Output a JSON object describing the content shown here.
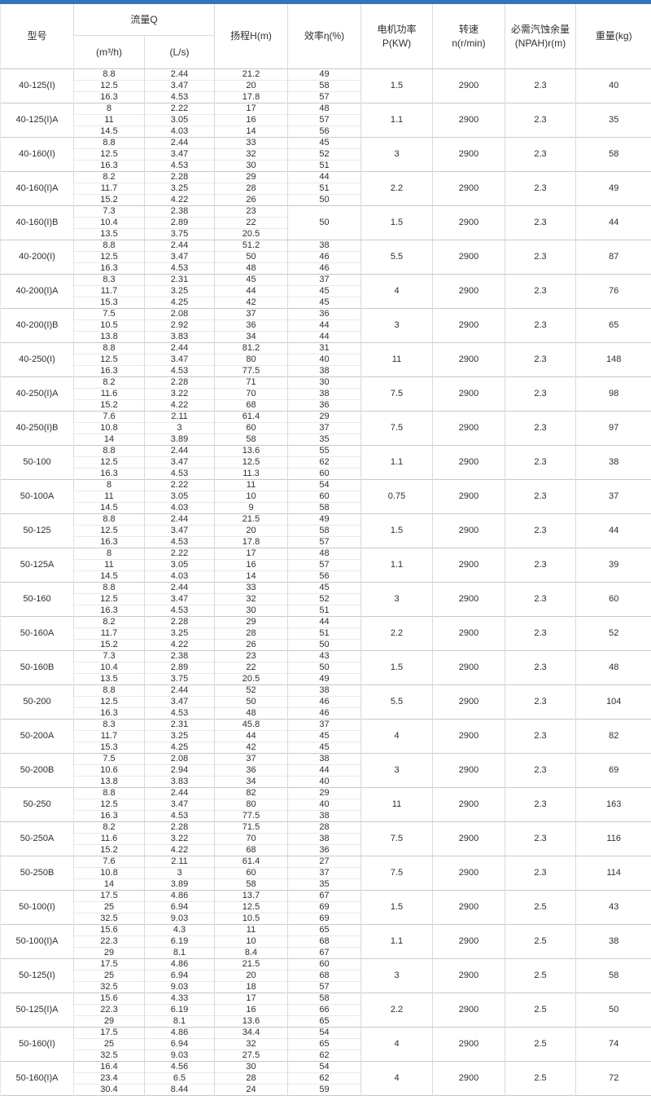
{
  "colors": {
    "accent_bar": "#3376b5"
  },
  "table": {
    "headers": {
      "model": "型号",
      "flow": "流量Q",
      "flow_m3h": "(m³/h)",
      "flow_ls": "(L/s)",
      "head": "扬程H(m)",
      "efficiency": "效率η(%)",
      "power_line1": "电机功率",
      "power_line2": "P(KW)",
      "speed_line1": "转速",
      "speed_line2": "n(r/min)",
      "npsh_line1": "必需汽蚀余量",
      "npsh_line2": "(NPAH)r(m)",
      "weight": "重量(kg)"
    },
    "rows": [
      {
        "model": "40-125(I)",
        "sub": [
          [
            "8.8",
            "2.44",
            "21.2",
            "49"
          ],
          [
            "12.5",
            "3.47",
            "20",
            "58"
          ],
          [
            "16.3",
            "4.53",
            "17.8",
            "57"
          ]
        ],
        "power": "1.5",
        "speed": "2900",
        "npsh": "2.3",
        "weight": "40"
      },
      {
        "model": "40-125(I)A",
        "sub": [
          [
            "8",
            "2.22",
            "17",
            "48"
          ],
          [
            "11",
            "3.05",
            "16",
            "57"
          ],
          [
            "14.5",
            "4.03",
            "14",
            "56"
          ]
        ],
        "power": "1.1",
        "speed": "2900",
        "npsh": "2.3",
        "weight": "35"
      },
      {
        "model": "40-160(I)",
        "sub": [
          [
            "8.8",
            "2.44",
            "33",
            "45"
          ],
          [
            "12.5",
            "3.47",
            "32",
            "52"
          ],
          [
            "16.3",
            "4.53",
            "30",
            "51"
          ]
        ],
        "power": "3",
        "speed": "2900",
        "npsh": "2.3",
        "weight": "58"
      },
      {
        "model": "40-160(I)A",
        "sub": [
          [
            "8.2",
            "2.28",
            "29",
            "44"
          ],
          [
            "11.7",
            "3.25",
            "28",
            "51"
          ],
          [
            "15.2",
            "4.22",
            "26",
            "50"
          ]
        ],
        "power": "2.2",
        "speed": "2900",
        "npsh": "2.3",
        "weight": "49"
      },
      {
        "model": "40-160(I)B",
        "sub": [
          [
            "7.3",
            "2.38",
            "23"
          ],
          [
            "10.4",
            "2.89",
            "22"
          ],
          [
            "13.5",
            "3.75",
            "20.5"
          ]
        ],
        "eff_merged": "50",
        "power": "1.5",
        "speed": "2900",
        "npsh": "2.3",
        "weight": "44"
      },
      {
        "model": "40-200(I)",
        "sub": [
          [
            "8.8",
            "2.44",
            "51.2",
            "38"
          ],
          [
            "12.5",
            "3.47",
            "50",
            "46"
          ],
          [
            "16.3",
            "4.53",
            "48",
            "46"
          ]
        ],
        "power": "5.5",
        "speed": "2900",
        "npsh": "2.3",
        "weight": "87"
      },
      {
        "model": "40-200(I)A",
        "sub": [
          [
            "8.3",
            "2.31",
            "45",
            "37"
          ],
          [
            "11.7",
            "3.25",
            "44",
            "45"
          ],
          [
            "15.3",
            "4.25",
            "42",
            "45"
          ]
        ],
        "power": "4",
        "speed": "2900",
        "npsh": "2.3",
        "weight": "76"
      },
      {
        "model": "40-200(I)B",
        "sub": [
          [
            "7.5",
            "2.08",
            "37",
            "36"
          ],
          [
            "10.5",
            "2.92",
            "36",
            "44"
          ],
          [
            "13.8",
            "3.83",
            "34",
            "44"
          ]
        ],
        "power": "3",
        "speed": "2900",
        "npsh": "2.3",
        "weight": "65"
      },
      {
        "model": "40-250(I)",
        "sub": [
          [
            "8.8",
            "2.44",
            "81.2",
            "31"
          ],
          [
            "12.5",
            "3.47",
            "80",
            "40"
          ],
          [
            "16.3",
            "4.53",
            "77.5",
            "38"
          ]
        ],
        "power": "11",
        "speed": "2900",
        "npsh": "2.3",
        "weight": "148"
      },
      {
        "model": "40-250(I)A",
        "sub": [
          [
            "8.2",
            "2.28",
            "71",
            "30"
          ],
          [
            "11.6",
            "3.22",
            "70",
            "38"
          ],
          [
            "15.2",
            "4.22",
            "68",
            "36"
          ]
        ],
        "power": "7.5",
        "speed": "2900",
        "npsh": "2.3",
        "weight": "98"
      },
      {
        "model": "40-250(I)B",
        "sub": [
          [
            "7.6",
            "2.11",
            "61.4",
            "29"
          ],
          [
            "10.8",
            "3",
            "60",
            "37"
          ],
          [
            "14",
            "3.89",
            "58",
            "35"
          ]
        ],
        "power": "7.5",
        "speed": "2900",
        "npsh": "2.3",
        "weight": "97"
      },
      {
        "model": "50-100",
        "sub": [
          [
            "8.8",
            "2.44",
            "13.6",
            "55"
          ],
          [
            "12.5",
            "3.47",
            "12.5",
            "62"
          ],
          [
            "16.3",
            "4.53",
            "11.3",
            "60"
          ]
        ],
        "power": "1.1",
        "speed": "2900",
        "npsh": "2.3",
        "weight": "38"
      },
      {
        "model": "50-100A",
        "sub": [
          [
            "8",
            "2.22",
            "11",
            "54"
          ],
          [
            "11",
            "3.05",
            "10",
            "60"
          ],
          [
            "14.5",
            "4.03",
            "9",
            "58"
          ]
        ],
        "power": "0.75",
        "speed": "2900",
        "npsh": "2.3",
        "weight": "37"
      },
      {
        "model": "50-125",
        "sub": [
          [
            "8.8",
            "2.44",
            "21.5",
            "49"
          ],
          [
            "12.5",
            "3.47",
            "20",
            "58"
          ],
          [
            "16.3",
            "4.53",
            "17.8",
            "57"
          ]
        ],
        "power": "1.5",
        "speed": "2900",
        "npsh": "2.3",
        "weight": "44"
      },
      {
        "model": "50-125A",
        "sub": [
          [
            "8",
            "2.22",
            "17",
            "48"
          ],
          [
            "11",
            "3.05",
            "16",
            "57"
          ],
          [
            "14.5",
            "4.03",
            "14",
            "56"
          ]
        ],
        "power": "1.1",
        "speed": "2900",
        "npsh": "2.3",
        "weight": "39"
      },
      {
        "model": "50-160",
        "sub": [
          [
            "8.8",
            "2.44",
            "33",
            "45"
          ],
          [
            "12.5",
            "3.47",
            "32",
            "52"
          ],
          [
            "16.3",
            "4.53",
            "30",
            "51"
          ]
        ],
        "power": "3",
        "speed": "2900",
        "npsh": "2.3",
        "weight": "60"
      },
      {
        "model": "50-160A",
        "sub": [
          [
            "8.2",
            "2.28",
            "29",
            "44"
          ],
          [
            "11.7",
            "3.25",
            "28",
            "51"
          ],
          [
            "15.2",
            "4.22",
            "26",
            "50"
          ]
        ],
        "power": "2.2",
        "speed": "2900",
        "npsh": "2.3",
        "weight": "52"
      },
      {
        "model": "50-160B",
        "sub": [
          [
            "7.3",
            "2.38",
            "23",
            "43"
          ],
          [
            "10.4",
            "2.89",
            "22",
            "50"
          ],
          [
            "13.5",
            "3.75",
            "20.5",
            "49"
          ]
        ],
        "power": "1.5",
        "speed": "2900",
        "npsh": "2.3",
        "weight": "48"
      },
      {
        "model": "50-200",
        "sub": [
          [
            "8.8",
            "2.44",
            "52",
            "38"
          ],
          [
            "12.5",
            "3.47",
            "50",
            "46"
          ],
          [
            "16.3",
            "4.53",
            "48",
            "46"
          ]
        ],
        "power": "5.5",
        "speed": "2900",
        "npsh": "2.3",
        "weight": "104"
      },
      {
        "model": "50-200A",
        "sub": [
          [
            "8.3",
            "2.31",
            "45.8",
            "37"
          ],
          [
            "11.7",
            "3.25",
            "44",
            "45"
          ],
          [
            "15.3",
            "4.25",
            "42",
            "45"
          ]
        ],
        "power": "4",
        "speed": "2900",
        "npsh": "2.3",
        "weight": "82"
      },
      {
        "model": "50-200B",
        "sub": [
          [
            "7.5",
            "2.08",
            "37",
            "38"
          ],
          [
            "10.6",
            "2.94",
            "36",
            "44"
          ],
          [
            "13.8",
            "3.83",
            "34",
            "40"
          ]
        ],
        "power": "3",
        "speed": "2900",
        "npsh": "2.3",
        "weight": "69"
      },
      {
        "model": "50-250",
        "sub": [
          [
            "8.8",
            "2.44",
            "82",
            "29"
          ],
          [
            "12.5",
            "3.47",
            "80",
            "40"
          ],
          [
            "16.3",
            "4.53",
            "77.5",
            "38"
          ]
        ],
        "power": "11",
        "speed": "2900",
        "npsh": "2.3",
        "weight": "163"
      },
      {
        "model": "50-250A",
        "sub": [
          [
            "8.2",
            "2.28",
            "71.5",
            "28"
          ],
          [
            "11.6",
            "3.22",
            "70",
            "38"
          ],
          [
            "15.2",
            "4.22",
            "68",
            "36"
          ]
        ],
        "power": "7.5",
        "speed": "2900",
        "npsh": "2.3",
        "weight": "116"
      },
      {
        "model": "50-250B",
        "sub": [
          [
            "7.6",
            "2.11",
            "61.4",
            "27"
          ],
          [
            "10.8",
            "3",
            "60",
            "37"
          ],
          [
            "14",
            "3.89",
            "58",
            "35"
          ]
        ],
        "power": "7.5",
        "speed": "2900",
        "npsh": "2.3",
        "weight": "114"
      },
      {
        "model": "50-100(I)",
        "sub": [
          [
            "17.5",
            "4.86",
            "13.7",
            "67"
          ],
          [
            "25",
            "6.94",
            "12.5",
            "69"
          ],
          [
            "32.5",
            "9.03",
            "10.5",
            "69"
          ]
        ],
        "power": "1.5",
        "speed": "2900",
        "npsh": "2.5",
        "weight": "43"
      },
      {
        "model": "50-100(I)A",
        "sub": [
          [
            "15.6",
            "4.3",
            "11",
            "65"
          ],
          [
            "22.3",
            "6.19",
            "10",
            "68"
          ],
          [
            "29",
            "8.1",
            "8.4",
            "67"
          ]
        ],
        "power": "1.1",
        "speed": "2900",
        "npsh": "2.5",
        "weight": "38"
      },
      {
        "model": "50-125(I)",
        "sub": [
          [
            "17.5",
            "4.86",
            "21.5",
            "60"
          ],
          [
            "25",
            "6.94",
            "20",
            "68"
          ],
          [
            "32.5",
            "9.03",
            "18",
            "57"
          ]
        ],
        "power": "3",
        "speed": "2900",
        "npsh": "2.5",
        "weight": "58"
      },
      {
        "model": "50-125(I)A",
        "sub": [
          [
            "15.6",
            "4.33",
            "17",
            "58"
          ],
          [
            "22.3",
            "6.19",
            "16",
            "66"
          ],
          [
            "29",
            "8.1",
            "13.6",
            "65"
          ]
        ],
        "power": "2.2",
        "speed": "2900",
        "npsh": "2.5",
        "weight": "50"
      },
      {
        "model": "50-160(I)",
        "sub": [
          [
            "17.5",
            "4.86",
            "34.4",
            "54"
          ],
          [
            "25",
            "6.94",
            "32",
            "65"
          ],
          [
            "32.5",
            "9.03",
            "27.5",
            "62"
          ]
        ],
        "power": "4",
        "speed": "2900",
        "npsh": "2.5",
        "weight": "74"
      },
      {
        "model": "50-160(I)A",
        "sub": [
          [
            "16.4",
            "4.56",
            "30",
            "54"
          ],
          [
            "23.4",
            "6.5",
            "28",
            "62"
          ],
          [
            "30.4",
            "8.44",
            "24",
            "59"
          ]
        ],
        "power": "4",
        "speed": "2900",
        "npsh": "2.5",
        "weight": "72"
      }
    ]
  }
}
